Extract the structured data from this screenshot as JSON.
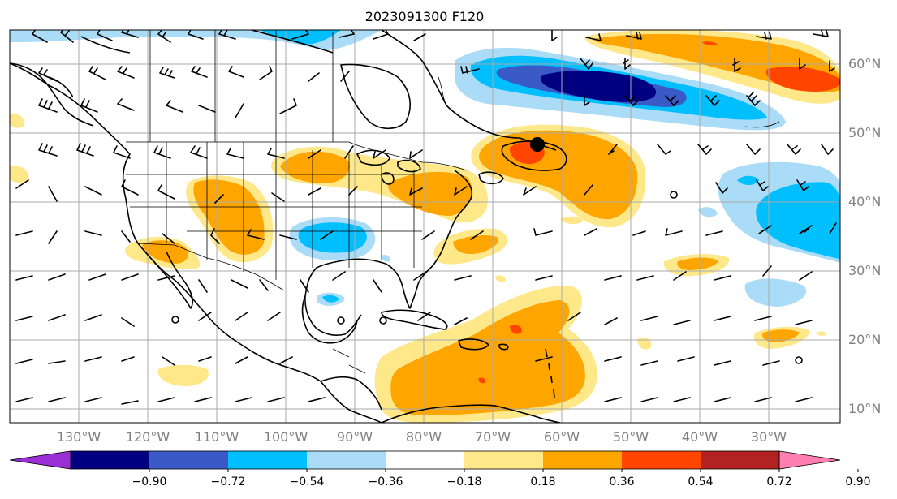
{
  "title": "2023091300 F120",
  "lon_labels": [
    "130°W",
    "120°W",
    "110°W",
    "100°W",
    "90°W",
    "80°W",
    "70°W",
    "60°W",
    "50°W",
    "40°W",
    "30°W"
  ],
  "lat_labels": [
    "60°N",
    "50°N",
    "40°N",
    "30°N",
    "20°N",
    "10°N"
  ],
  "colorbar": {
    "tick_labels": [
      "−0.90",
      "−0.72",
      "−0.54",
      "−0.36",
      "−0.18",
      "0.18",
      "0.36",
      "0.54",
      "0.72",
      "0.90"
    ],
    "colors": [
      "#9a2fd6",
      "#000080",
      "#3a5bc7",
      "#00bfff",
      "#aadcf8",
      "#ffffff",
      "#ffe88a",
      "#ffa500",
      "#ff4500",
      "#b22222",
      "#ff80b0"
    ]
  },
  "colors": {
    "grid": "#aaaaaa",
    "axis_label": "#808080"
  }
}
